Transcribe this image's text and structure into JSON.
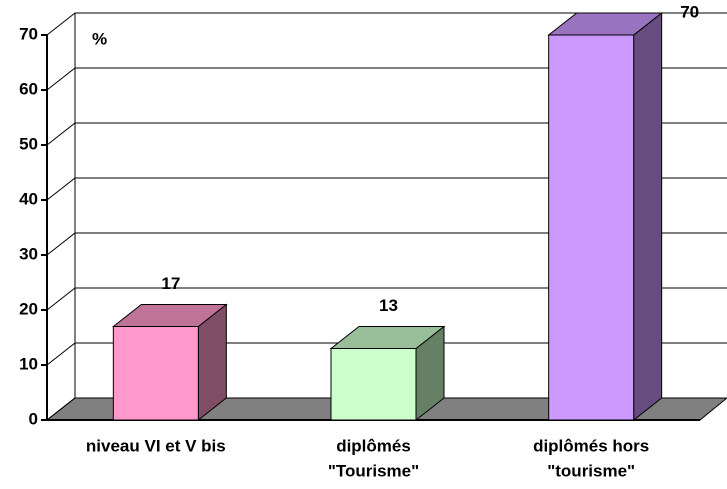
{
  "chart_data": {
    "type": "bar3d",
    "axis_unit": "%",
    "categories": [
      [
        "niveau VI et V bis"
      ],
      [
        "diplômés",
        "\"Tourisme\""
      ],
      [
        "diplômés hors",
        "\"tourisme\""
      ]
    ],
    "values": [
      17,
      13,
      70
    ],
    "colors": [
      "#ff99cc",
      "#ccffcc",
      "#cc99ff"
    ],
    "ylim": [
      0,
      70
    ],
    "yticks": [
      0,
      10,
      20,
      30,
      40,
      50,
      60,
      70
    ],
    "grid": true
  }
}
